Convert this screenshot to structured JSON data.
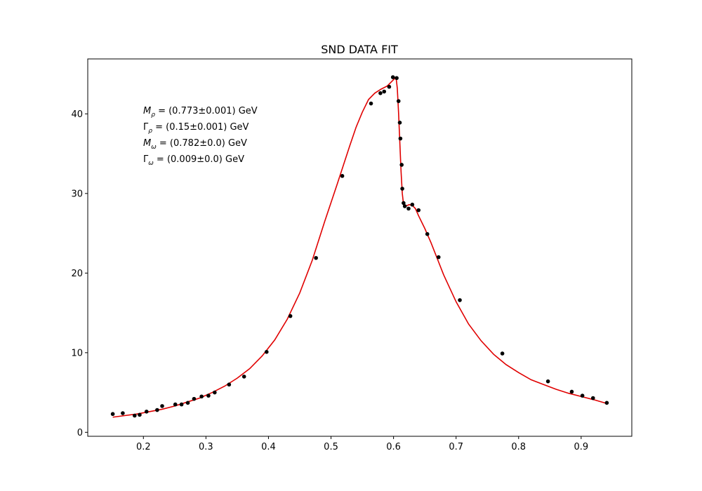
{
  "chart_data": {
    "type": "scatter",
    "title": "SND DATA FIT",
    "xlabel": "",
    "ylabel": "",
    "xlim": [
      0.111,
      0.981
    ],
    "ylim": [
      -0.5,
      46.9
    ],
    "xticks": [
      0.2,
      0.3,
      0.4,
      0.5,
      0.6,
      0.7,
      0.8,
      0.9
    ],
    "xtick_labels": [
      "0.2",
      "0.3",
      "0.4",
      "0.5",
      "0.6",
      "0.7",
      "0.8",
      "0.9"
    ],
    "yticks": [
      0,
      10,
      20,
      30,
      40
    ],
    "ytick_labels": [
      "0",
      "10",
      "20",
      "30",
      "40"
    ],
    "grid": false,
    "colors": {
      "points": "#000000",
      "fit": "#e00000"
    },
    "series": [
      {
        "kind": "data points",
        "x": [
          0.151,
          0.167,
          0.186,
          0.194,
          0.205,
          0.222,
          0.23,
          0.251,
          0.261,
          0.271,
          0.281,
          0.293,
          0.304,
          0.314,
          0.337,
          0.361,
          0.397,
          0.435,
          0.476,
          0.518,
          0.564,
          0.579,
          0.585,
          0.593,
          0.599,
          0.605,
          0.608,
          0.61,
          0.611,
          0.613,
          0.614,
          0.616,
          0.618,
          0.624,
          0.63,
          0.64,
          0.654,
          0.672,
          0.706,
          0.774,
          0.847,
          0.885,
          0.902,
          0.919,
          0.941
        ],
        "y": [
          2.3,
          2.4,
          2.1,
          2.2,
          2.6,
          2.8,
          3.3,
          3.5,
          3.5,
          3.7,
          4.2,
          4.5,
          4.6,
          5.0,
          6.0,
          7.0,
          10.1,
          14.6,
          21.9,
          32.2,
          41.3,
          42.6,
          42.8,
          43.4,
          44.6,
          44.5,
          41.6,
          38.9,
          36.9,
          33.6,
          30.6,
          28.8,
          28.4,
          28.1,
          28.6,
          27.9,
          24.9,
          22.0,
          16.6,
          9.9,
          6.4,
          5.1,
          4.6,
          4.3,
          3.7
        ]
      },
      {
        "kind": "fit curve",
        "x": [
          0.151,
          0.17,
          0.19,
          0.21,
          0.23,
          0.25,
          0.27,
          0.29,
          0.31,
          0.33,
          0.35,
          0.37,
          0.39,
          0.41,
          0.43,
          0.45,
          0.47,
          0.49,
          0.51,
          0.52,
          0.53,
          0.54,
          0.55,
          0.56,
          0.57,
          0.58,
          0.59,
          0.595,
          0.6,
          0.604,
          0.606,
          0.608,
          0.61,
          0.612,
          0.614,
          0.616,
          0.618,
          0.62,
          0.622,
          0.625,
          0.63,
          0.635,
          0.64,
          0.65,
          0.66,
          0.67,
          0.68,
          0.7,
          0.72,
          0.74,
          0.76,
          0.78,
          0.8,
          0.82,
          0.84,
          0.86,
          0.88,
          0.9,
          0.92,
          0.942
        ],
        "y": [
          1.9,
          2.1,
          2.3,
          2.6,
          2.9,
          3.3,
          3.8,
          4.3,
          5.0,
          5.8,
          6.8,
          8.0,
          9.6,
          11.6,
          14.2,
          17.5,
          21.6,
          26.5,
          31.2,
          33.6,
          36.0,
          38.3,
          40.2,
          41.8,
          42.6,
          43.1,
          43.5,
          43.9,
          44.3,
          44.6,
          43.2,
          40.2,
          36.5,
          32.8,
          30.0,
          28.6,
          28.3,
          28.4,
          28.5,
          28.6,
          28.5,
          28.1,
          27.2,
          25.6,
          23.8,
          21.8,
          19.8,
          16.4,
          13.6,
          11.5,
          9.8,
          8.5,
          7.5,
          6.6,
          6.0,
          5.4,
          4.9,
          4.5,
          4.1,
          3.6
        ]
      }
    ],
    "annotations": [
      {
        "symbol": "M",
        "sub": "ρ",
        "text": " = (0.773±0.001) GeV"
      },
      {
        "symbol": "Γ",
        "sub": "ρ",
        "text": " = (0.15±0.001) GeV"
      },
      {
        "symbol": "M",
        "sub": "ω",
        "text": " = (0.782±0.0) GeV"
      },
      {
        "symbol": "Γ",
        "sub": "ω",
        "text": " = (0.009±0.0) GeV"
      }
    ]
  }
}
